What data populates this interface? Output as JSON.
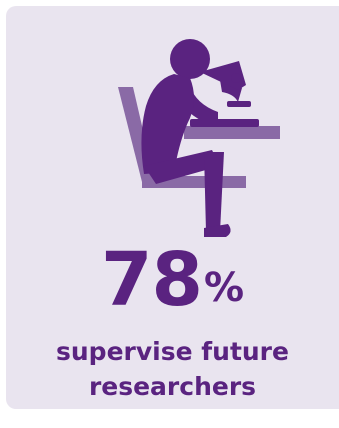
{
  "stat": {
    "value": "78",
    "unit": "%",
    "caption_line1": "supervise future",
    "caption_line2": "researchers"
  },
  "colors": {
    "card_background": "#e9e4ef",
    "primary_purple": "#5a2380",
    "secondary_purple": "#8a6aa6"
  },
  "icons": {
    "illustration": "researcher-at-microscope-icon"
  }
}
